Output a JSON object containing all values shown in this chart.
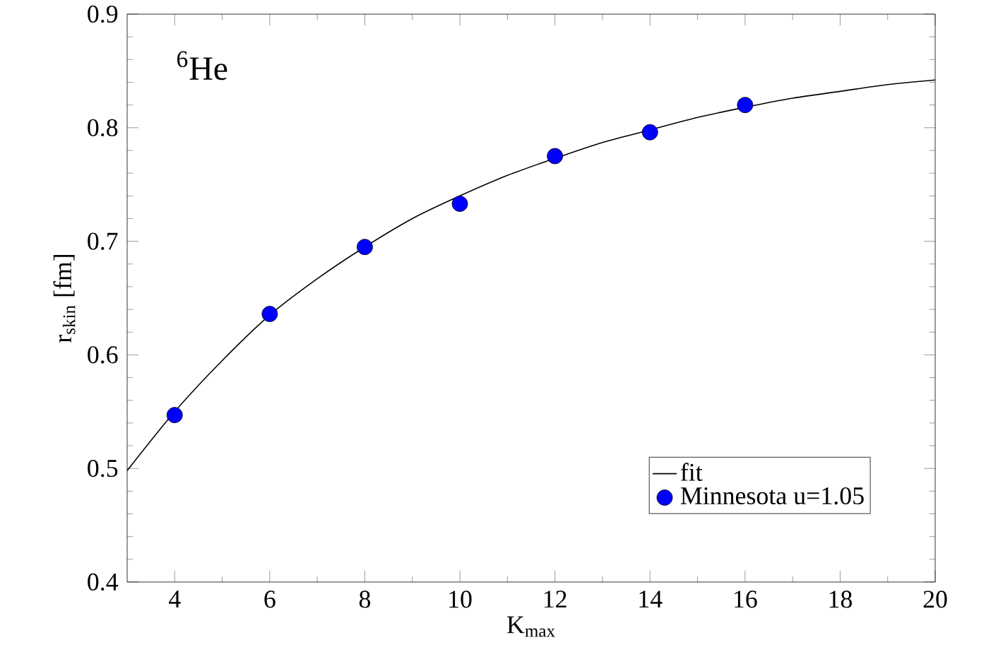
{
  "chart_data": {
    "type": "scatter",
    "xlabel": "K$_{max}$",
    "ylabel": "r$_{skin}$ [fm]",
    "annotations": [
      "$^{6}$He"
    ],
    "xlim": [
      3,
      20
    ],
    "ylim": [
      0.4,
      0.9
    ],
    "xticks": [
      4,
      6,
      8,
      10,
      12,
      14,
      16,
      18,
      20
    ],
    "yticks": [
      0.4,
      0.5,
      0.6,
      0.7,
      0.8,
      0.9
    ],
    "grid": false,
    "legend": "bottom right",
    "series": [
      {
        "name": "fit",
        "type": "line",
        "marker": "none",
        "color": "#000000",
        "x": [
          3,
          4,
          5,
          6,
          7,
          8,
          9,
          10,
          11,
          12,
          13,
          14,
          15,
          16,
          17,
          18,
          19,
          20
        ],
        "values": [
          0.498,
          0.55,
          0.595,
          0.635,
          0.667,
          0.695,
          0.72,
          0.74,
          0.758,
          0.773,
          0.787,
          0.798,
          0.809,
          0.818,
          0.826,
          0.832,
          0.838,
          0.842
        ]
      },
      {
        "name": "Minnesota u=1.05",
        "marker": "circle",
        "color": "#0000ff",
        "x": [
          4,
          6,
          8,
          10,
          12,
          14,
          16
        ],
        "values": [
          0.547,
          0.636,
          0.695,
          0.733,
          0.775,
          0.796,
          0.82
        ]
      }
    ]
  }
}
